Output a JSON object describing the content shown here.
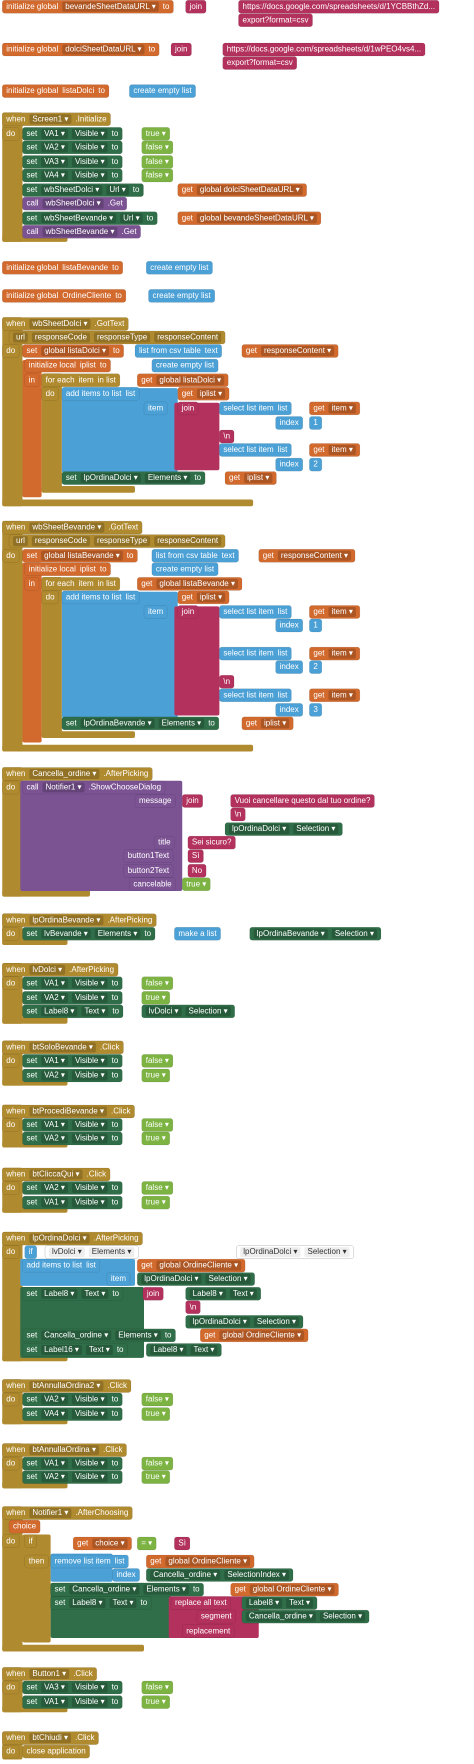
{
  "rows": [
    [
      "initialize global",
      "bevandeSheetDataURL ▾",
      "to"
    ],
    [
      "join"
    ],
    [
      "https://docs.google.com/spreadsheets/d/1YCBBthZd..."
    ],
    [
      "export?format=csv"
    ],
    [
      "initialize global",
      "dolciSheetDataURL ▾",
      "to"
    ],
    [
      "join"
    ],
    [
      "https://docs.google.com/spreadsheets/d/1wPEO4vs4..."
    ],
    [
      "export?format=csv"
    ],
    [
      "initialize global",
      "listaDolci",
      "to"
    ],
    [
      "create empty list"
    ],
    [
      "when",
      "Screen1 ▾",
      ".Initialize"
    ],
    [
      "do"
    ],
    [
      "set",
      "VA1 ▾",
      "Visible ▾",
      "to"
    ],
    [
      "true ▾"
    ],
    [
      "set",
      "VA2 ▾",
      "Visible ▾",
      "to"
    ],
    [
      "false ▾"
    ],
    [
      "set",
      "VA3 ▾",
      "Visible ▾",
      "to"
    ],
    [
      "false ▾"
    ],
    [
      "set",
      "VA4 ▾",
      "Visible ▾",
      "to"
    ],
    [
      "false ▾"
    ],
    [
      "set",
      "wbSheetDolci ▾",
      "Url ▾",
      "to"
    ],
    [
      "get",
      "global dolciSheetDataURL ▾"
    ],
    [
      "call",
      "wbSheetDolci ▾",
      ".Get"
    ],
    [
      "set",
      "wbSheetBevande ▾",
      "Url ▾",
      "to"
    ],
    [
      "get",
      "global bevandeSheetDataURL ▾"
    ],
    [
      "call",
      "wbSheetBevande ▾",
      ".Get"
    ],
    [
      "initialize global",
      "listaBevande",
      "to"
    ],
    [
      "create empty list"
    ],
    [
      "initialize global",
      "OrdineCliente",
      "to"
    ],
    [
      "create empty list"
    ],
    [
      "when",
      "wbSheetDolci ▾",
      ".GotText"
    ],
    [
      "url",
      "responseCode",
      "responseType",
      "responseContent"
    ],
    [
      "do"
    ],
    [
      "set",
      "global listaDolci ▾",
      "to"
    ],
    [
      "list from csv table",
      "text"
    ],
    [
      "get",
      "responseContent ▾"
    ],
    [
      "initialize local",
      "iplist",
      "to"
    ],
    [
      "create empty list"
    ],
    [
      "in"
    ],
    [
      "for each",
      "item",
      "in list"
    ],
    [
      "get",
      "global listaDolci ▾"
    ],
    [
      "do"
    ],
    [
      "add items to list",
      "list"
    ],
    [
      "get",
      "iplist ▾"
    ],
    [
      "item"
    ],
    [
      "join"
    ],
    [
      "select list item",
      "list"
    ],
    [
      "get",
      "item ▾"
    ],
    [
      "index"
    ],
    [
      "1"
    ],
    [
      "\\n"
    ],
    [
      "select list item",
      "list"
    ],
    [
      "get",
      "item ▾"
    ],
    [
      "index"
    ],
    [
      "2"
    ],
    [
      "set",
      "lpOrdinaDolci ▾",
      "Elements ▾",
      "to"
    ],
    [
      "get",
      "iplist ▾"
    ],
    [
      "when",
      "wbSheetBevande ▾",
      ".GotText"
    ],
    [
      "url",
      "responseCode",
      "responseType",
      "responseContent"
    ],
    [
      "do"
    ],
    [
      "set",
      "global listaBevande ▾",
      "to"
    ],
    [
      "list from csv table",
      "text"
    ],
    [
      "get",
      "responseContent ▾"
    ],
    [
      "initialize local",
      "iplist",
      "to"
    ],
    [
      "create empty list"
    ],
    [
      "in"
    ],
    [
      "for each",
      "item",
      "in list"
    ],
    [
      "get",
      "global listaBevande ▾"
    ],
    [
      "do"
    ],
    [
      "add items to list",
      "list"
    ],
    [
      "get",
      "iplist ▾"
    ],
    [
      "item"
    ],
    [
      "join"
    ],
    [
      "select list item",
      "list"
    ],
    [
      "get",
      "item ▾"
    ],
    [
      "index"
    ],
    [
      "1"
    ],
    [
      "select list item",
      "list"
    ],
    [
      "get",
      "item ▾"
    ],
    [
      "index"
    ],
    [
      "2"
    ],
    [
      "\\n"
    ],
    [
      "select list item",
      "list"
    ],
    [
      "get",
      "item ▾"
    ],
    [
      "index"
    ],
    [
      "3"
    ],
    [
      "set",
      "lpOrdinaBevande ▾",
      "Elements ▾",
      "to"
    ],
    [
      "get",
      "iplist ▾"
    ],
    [
      "when",
      "Cancella_ordine ▾",
      ".AfterPicking"
    ],
    [
      "do"
    ],
    [
      "call",
      "Notifier1 ▾",
      ".ShowChooseDialog"
    ],
    [
      "message"
    ],
    [
      "join"
    ],
    [
      "Vuoi cancellare questo dal tuo ordine?"
    ],
    [
      "\\n"
    ],
    [
      "lpOrdinaDolci ▾",
      "Selection ▾"
    ],
    [
      "title"
    ],
    [
      "Sei sicuro?"
    ],
    [
      "button1Text"
    ],
    [
      "Sì"
    ],
    [
      "button2Text"
    ],
    [
      "No"
    ],
    [
      "cancelable"
    ],
    [
      "true ▾"
    ],
    [
      "when",
      "lpOrdinaBevande ▾",
      ".AfterPicking"
    ],
    [
      "do"
    ],
    [
      "set",
      "lvBevande ▾",
      "Elements ▾",
      "to"
    ],
    [
      "make a list"
    ],
    [
      "lpOrdinaBevande ▾",
      "Selection ▾"
    ],
    [
      "when",
      "lvDolci ▾",
      ".AfterPicking"
    ],
    [
      "do"
    ],
    [
      "set",
      "VA1 ▾",
      "Visible ▾",
      "to"
    ],
    [
      "false ▾"
    ],
    [
      "set",
      "VA2 ▾",
      "Visible ▾",
      "to"
    ],
    [
      "true ▾"
    ],
    [
      "set",
      "Label8 ▾",
      "Text ▾",
      "to"
    ],
    [
      "lvDolci ▾",
      "Selection ▾"
    ],
    [
      "when",
      "btSoloBevande ▾",
      ".Click"
    ],
    [
      "do"
    ],
    [
      "set",
      "VA1 ▾",
      "Visible ▾",
      "to"
    ],
    [
      "false ▾"
    ],
    [
      "set",
      "VA2 ▾",
      "Visible ▾",
      "to"
    ],
    [
      "true ▾"
    ],
    [
      "when",
      "btProcediBevande ▾",
      ".Click"
    ],
    [
      "do"
    ],
    [
      "set",
      "VA1 ▾",
      "Visible ▾",
      "to"
    ],
    [
      "false ▾"
    ],
    [
      "set",
      "VA2 ▾",
      "Visible ▾",
      "to"
    ],
    [
      "true ▾"
    ],
    [
      "when",
      "btCliccaQui ▾",
      ".Click"
    ],
    [
      "do"
    ],
    [
      "set",
      "VA2 ▾",
      "Visible ▾",
      "to"
    ],
    [
      "false ▾"
    ],
    [
      "set",
      "VA1 ▾",
      "Visible ▾",
      "to"
    ],
    [
      "true ▾"
    ],
    [
      "when",
      "lpOrdinaDolci ▾",
      ".AfterPicking"
    ],
    [
      "do"
    ],
    [
      "if"
    ],
    [
      "lvDolci ▾",
      "Elements ▾"
    ],
    [
      "lpOrdinaDolci ▾",
      "Selection ▾"
    ],
    [
      "add items to list",
      "list"
    ],
    [
      "get",
      "global OrdineCliente ▾"
    ],
    [
      "item"
    ],
    [
      "lpOrdinaDolci ▾",
      "Selection ▾"
    ],
    [
      "set",
      "Label8 ▾",
      "Text ▾",
      "to"
    ],
    [
      "join"
    ],
    [
      "Label8 ▾",
      "Text ▾"
    ],
    [
      "\\n"
    ],
    [
      "lpOrdinaDolci ▾",
      "Selection ▾"
    ],
    [
      "set",
      "Cancella_ordine ▾",
      "Elements ▾",
      "to"
    ],
    [
      "get",
      "global OrdineCliente ▾"
    ],
    [
      "set",
      "Label16 ▾",
      "Text ▾",
      "to"
    ],
    [
      "Label8 ▾",
      "Text ▾"
    ],
    [
      "when",
      "btAnnullaOrdina2 ▾",
      ".Click"
    ],
    [
      "do"
    ],
    [
      "set",
      "VA2 ▾",
      "Visible ▾",
      "to"
    ],
    [
      "false ▾"
    ],
    [
      "set",
      "VA4 ▾",
      "Visible ▾",
      "to"
    ],
    [
      "true ▾"
    ],
    [
      "when",
      "btAnnullaOrdina ▾",
      ".Click"
    ],
    [
      "do"
    ],
    [
      "set",
      "VA1 ▾",
      "Visible ▾",
      "to"
    ],
    [
      "false ▾"
    ],
    [
      "set",
      "VA2 ▾",
      "Visible ▾",
      "to"
    ],
    [
      "true ▾"
    ],
    [
      "when",
      "Notifier1 ▾",
      ".AfterChoosing"
    ],
    [
      "choice"
    ],
    [
      "do"
    ],
    [
      "if"
    ],
    [
      "get",
      "choice ▾"
    ],
    [
      "= ▾"
    ],
    [
      "Sì"
    ],
    [
      "then"
    ],
    [
      "remove list item",
      "list"
    ],
    [
      "get",
      "global OrdineCliente ▾"
    ],
    [
      "index"
    ],
    [
      "Cancella_ordine ▾",
      "SelectionIndex ▾"
    ],
    [
      "set",
      "Cancella_ordine ▾",
      "Elements ▾",
      "to"
    ],
    [
      "get",
      "global OrdineCliente ▾"
    ],
    [
      "set",
      "Label8 ▾",
      "Text ▾",
      "to"
    ],
    [
      "replace all text"
    ],
    [
      "Label8 ▾",
      "Text ▾"
    ],
    [
      "segment"
    ],
    [
      "Cancella_ordine ▾",
      "Selection ▾"
    ],
    [
      "replacement"
    ],
    [
      "when",
      "Button1 ▾",
      ".Click"
    ],
    [
      "do"
    ],
    [
      "set",
      "VA3 ▾",
      "Visible ▾",
      "to"
    ],
    [
      "false ▾"
    ],
    [
      "set",
      "VA1 ▾",
      "Visible ▾",
      "to"
    ],
    [
      "true ▾"
    ],
    [
      "when",
      "btChiudi ▾",
      ".Click"
    ],
    [
      "do"
    ],
    [
      "close application"
    ]
  ]
}
